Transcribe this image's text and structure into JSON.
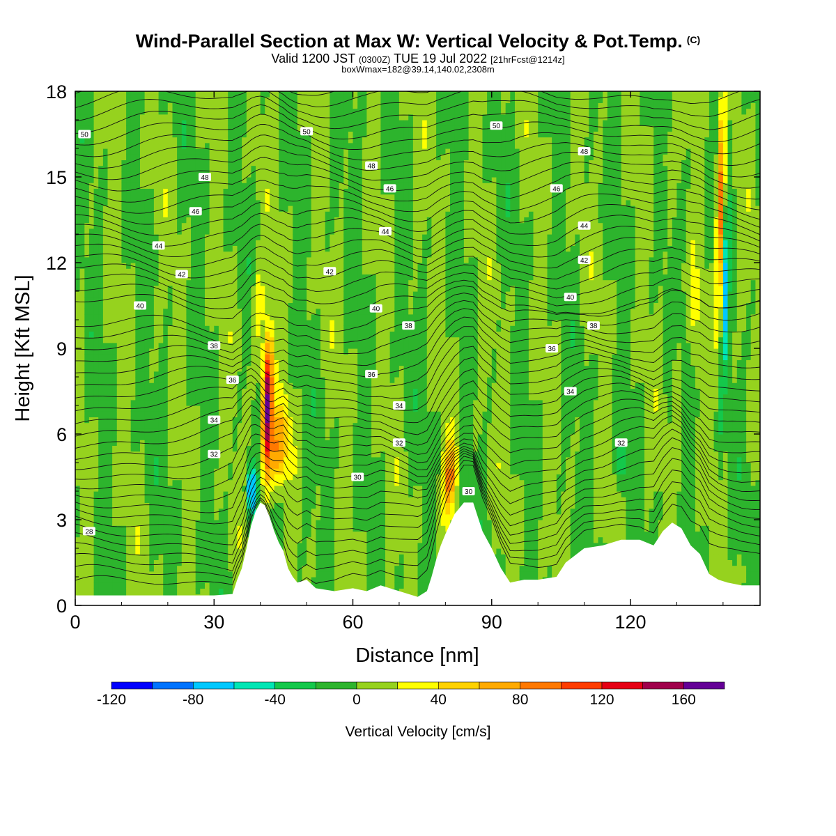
{
  "header": {
    "title": "Wind-Parallel Section at Max W: Vertical Velocity & Pot.Temp.",
    "copyright": "(C)",
    "valid_main": "Valid 1200 JST",
    "valid_utc": "(0300Z)",
    "valid_date": "TUE 19 Jul 2022",
    "forecast": "[21hrFcst@1214z]",
    "box_info": "boxWmax=182@39.14,140.02,2308m"
  },
  "chart_data": {
    "type": "heatmap",
    "xlabel": "Distance [nm]",
    "ylabel": "Height [Kft MSL]",
    "xlim": [
      0,
      148
    ],
    "ylim": [
      0,
      18
    ],
    "x_ticks": [
      0,
      30,
      60,
      90,
      120
    ],
    "y_ticks": [
      0,
      3,
      6,
      9,
      12,
      15,
      18
    ],
    "colorbar": {
      "label": "Vertical Velocity [cm/s]",
      "tick_labels": [
        "-120",
        "-80",
        "-40",
        "0",
        "40",
        "80",
        "120",
        "160"
      ],
      "tick_values": [
        -120,
        -80,
        -40,
        0,
        40,
        80,
        120,
        160
      ],
      "range": [
        -120,
        180
      ],
      "step": 20,
      "colors": [
        "#0000ff",
        "#0073ff",
        "#00c8ff",
        "#00e6b4",
        "#14c84b",
        "#2db42d",
        "#96d21e",
        "#ffff00",
        "#ffd200",
        "#ffaa00",
        "#ff7800",
        "#ff3c00",
        "#e60014",
        "#a0004b",
        "#640096"
      ]
    },
    "terrain_top_kft": [
      [
        0,
        0.35
      ],
      [
        8,
        0.35
      ],
      [
        20,
        0.35
      ],
      [
        30,
        0.35
      ],
      [
        34,
        0.4
      ],
      [
        35,
        0.9
      ],
      [
        36,
        1.3
      ],
      [
        37,
        2.0
      ],
      [
        38,
        2.8
      ],
      [
        39,
        3.3
      ],
      [
        40,
        3.6
      ],
      [
        41,
        3.5
      ],
      [
        42,
        3.1
      ],
      [
        43,
        2.6
      ],
      [
        44,
        2.2
      ],
      [
        45,
        1.9
      ],
      [
        46,
        1.3
      ],
      [
        47,
        1.0
      ],
      [
        48,
        0.8
      ],
      [
        50,
        0.9
      ],
      [
        52,
        0.6
      ],
      [
        56,
        0.5
      ],
      [
        60,
        0.6
      ],
      [
        63,
        0.5
      ],
      [
        66,
        0.7
      ],
      [
        70,
        0.5
      ],
      [
        74,
        0.3
      ],
      [
        76,
        0.5
      ],
      [
        77,
        1.0
      ],
      [
        78,
        1.6
      ],
      [
        79,
        2.1
      ],
      [
        80,
        2.5
      ],
      [
        82,
        3.2
      ],
      [
        84,
        3.6
      ],
      [
        86,
        3.6
      ],
      [
        88,
        2.6
      ],
      [
        90,
        2.0
      ],
      [
        92,
        1.3
      ],
      [
        94,
        0.8
      ],
      [
        97,
        0.9
      ],
      [
        100,
        0.9
      ],
      [
        104,
        1.0
      ],
      [
        106,
        1.5
      ],
      [
        110,
        2.0
      ],
      [
        114,
        2.1
      ],
      [
        118,
        2.3
      ],
      [
        122,
        2.3
      ],
      [
        125,
        2.1
      ],
      [
        127,
        2.6
      ],
      [
        129,
        2.9
      ],
      [
        131,
        2.7
      ],
      [
        133,
        2.1
      ],
      [
        135,
        1.8
      ],
      [
        137,
        1.1
      ],
      [
        139,
        0.9
      ],
      [
        141,
        0.8
      ],
      [
        144,
        0.7
      ],
      [
        148,
        0.7
      ]
    ],
    "isentropes": [
      {
        "theta": 28,
        "anchor": [
          3,
          2.6
        ],
        "base": 1.8,
        "alt": 2.2
      },
      {
        "theta": 30,
        "anchor": [
          61,
          4.5
        ],
        "base": 3.6,
        "alt": 4.2
      },
      {
        "theta": 30,
        "anchor": [
          85,
          4.0
        ],
        "base": 3.6,
        "alt": 4.2
      },
      {
        "theta": 32,
        "anchor": [
          30,
          5.3
        ],
        "base": 5.1,
        "alt": 5.9
      },
      {
        "theta": 32,
        "anchor": [
          70,
          5.7
        ],
        "base": 5.1,
        "alt": 5.9
      },
      {
        "theta": 32,
        "anchor": [
          118,
          5.7
        ],
        "base": 5.1,
        "alt": 5.9
      },
      {
        "theta": 34,
        "anchor": [
          30,
          6.5
        ],
        "base": 6.4,
        "alt": 7.2
      },
      {
        "theta": 34,
        "anchor": [
          70,
          7.0
        ],
        "base": 6.4,
        "alt": 7.2
      },
      {
        "theta": 34,
        "anchor": [
          107,
          7.5
        ],
        "base": 6.4,
        "alt": 7.2
      },
      {
        "theta": 36,
        "anchor": [
          34,
          7.9
        ],
        "base": 7.8,
        "alt": 8.4
      },
      {
        "theta": 36,
        "anchor": [
          64,
          8.1
        ],
        "base": 7.8,
        "alt": 8.4
      },
      {
        "theta": 36,
        "anchor": [
          103,
          9.0
        ],
        "base": 7.8,
        "alt": 8.4
      },
      {
        "theta": 38,
        "anchor": [
          30,
          9.1
        ],
        "base": 9.0,
        "alt": 9.6
      },
      {
        "theta": 38,
        "anchor": [
          72,
          9.8
        ],
        "base": 9.0,
        "alt": 9.6
      },
      {
        "theta": 38,
        "anchor": [
          112,
          9.8
        ],
        "base": 9.0,
        "alt": 9.6
      },
      {
        "theta": 40,
        "anchor": [
          14,
          10.5
        ],
        "base": 10.3,
        "alt": 10.8
      },
      {
        "theta": 40,
        "anchor": [
          65,
          10.4
        ],
        "base": 10.3,
        "alt": 10.8
      },
      {
        "theta": 40,
        "anchor": [
          107,
          10.8
        ],
        "base": 10.3,
        "alt": 10.8
      },
      {
        "theta": 42,
        "anchor": [
          23,
          11.6
        ],
        "base": 11.4,
        "alt": 11.9
      },
      {
        "theta": 42,
        "anchor": [
          55,
          11.7
        ],
        "base": 11.4,
        "alt": 11.9
      },
      {
        "theta": 42,
        "anchor": [
          110,
          12.1
        ],
        "base": 11.4,
        "alt": 11.9
      },
      {
        "theta": 44,
        "anchor": [
          18,
          12.6
        ],
        "base": 12.6,
        "alt": 13.1
      },
      {
        "theta": 44,
        "anchor": [
          67,
          13.1
        ],
        "base": 12.6,
        "alt": 13.1
      },
      {
        "theta": 44,
        "anchor": [
          110,
          13.3
        ],
        "base": 12.6,
        "alt": 13.1
      },
      {
        "theta": 46,
        "anchor": [
          26,
          13.8
        ],
        "base": 13.8,
        "alt": 14.4
      },
      {
        "theta": 46,
        "anchor": [
          68,
          14.6
        ],
        "base": 13.8,
        "alt": 14.4
      },
      {
        "theta": 46,
        "anchor": [
          104,
          14.6
        ],
        "base": 13.8,
        "alt": 14.4
      },
      {
        "theta": 48,
        "anchor": [
          28,
          15.0
        ],
        "base": 15.0,
        "alt": 15.6
      },
      {
        "theta": 48,
        "anchor": [
          64,
          15.4
        ],
        "base": 15.0,
        "alt": 15.6
      },
      {
        "theta": 48,
        "anchor": [
          110,
          15.9
        ],
        "base": 15.0,
        "alt": 15.6
      },
      {
        "theta": 50,
        "anchor": [
          2,
          16.5
        ],
        "base": 16.2,
        "alt": 16.8
      },
      {
        "theta": 50,
        "anchor": [
          50,
          16.6
        ],
        "base": 16.2,
        "alt": 16.8
      },
      {
        "theta": 50,
        "anchor": [
          91,
          16.8
        ],
        "base": 16.2,
        "alt": 16.8
      }
    ]
  }
}
